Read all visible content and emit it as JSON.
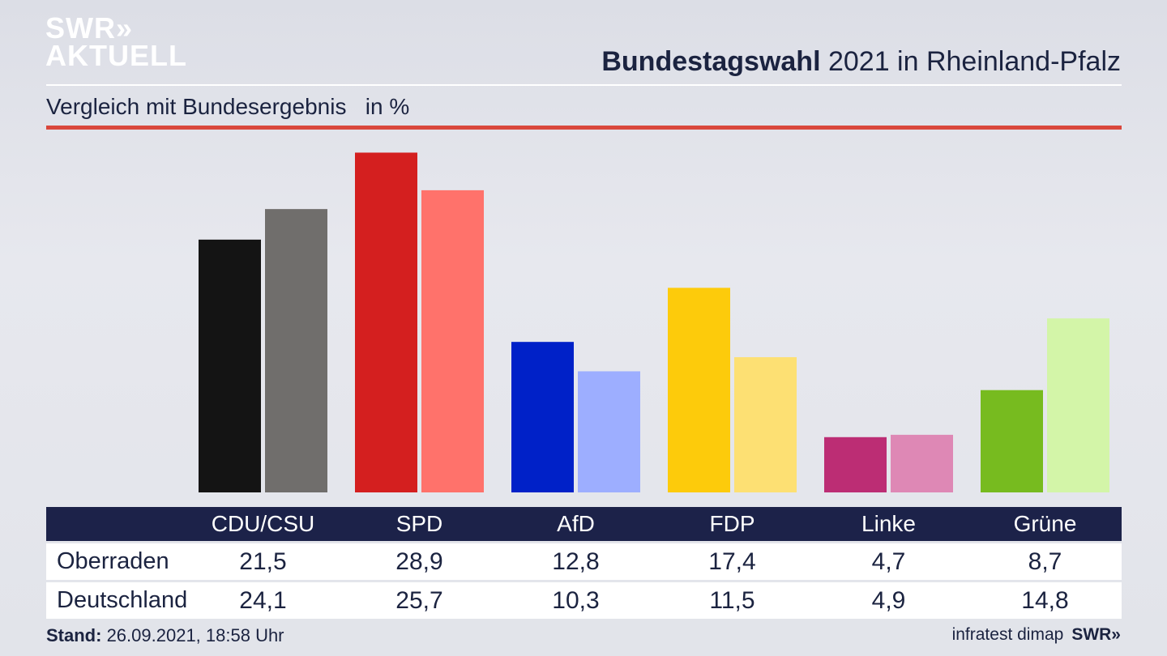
{
  "logo": {
    "line1": "SWR»",
    "line2": "AKTUELL"
  },
  "header": {
    "title_bold": "Bundestagswahl",
    "title_rest": " 2021 in Rheinland-Pfalz",
    "subtitle": "Vergleich mit Bundesergebnis   in %"
  },
  "chart_data": {
    "type": "bar",
    "categories": [
      "CDU/CSU",
      "SPD",
      "AfD",
      "FDP",
      "Linke",
      "Grüne"
    ],
    "series": [
      {
        "name": "Oberraden",
        "values": [
          21.5,
          28.9,
          12.8,
          17.4,
          4.7,
          8.7
        ],
        "colors": [
          "#141414",
          "#d41f1f",
          "#0021c8",
          "#fdcb0b",
          "#bc2d74",
          "#77bb1f"
        ]
      },
      {
        "name": "Deutschland",
        "values": [
          24.1,
          25.7,
          10.3,
          11.5,
          4.9,
          14.8
        ],
        "colors": [
          "#706e6c",
          "#ff726b",
          "#9daeff",
          "#fde073",
          "#de88b5",
          "#d3f5a8"
        ]
      }
    ],
    "ylim": [
      0,
      29
    ]
  },
  "table": {
    "headers": [
      "CDU/CSU",
      "SPD",
      "AfD",
      "FDP",
      "Linke",
      "Grüne"
    ],
    "rows": [
      {
        "label": "Oberraden",
        "values": [
          "21,5",
          "28,9",
          "12,8",
          "17,4",
          "4,7",
          "8,7"
        ]
      },
      {
        "label": "Deutschland",
        "values": [
          "24,1",
          "25,7",
          "10,3",
          "11,5",
          "4,9",
          "14,8"
        ]
      }
    ]
  },
  "footer": {
    "stand_label": "Stand:",
    "stand_value": " 26.09.2021, 18:58 Uhr",
    "source": "infratest dimap",
    "brand": "SWR»"
  }
}
